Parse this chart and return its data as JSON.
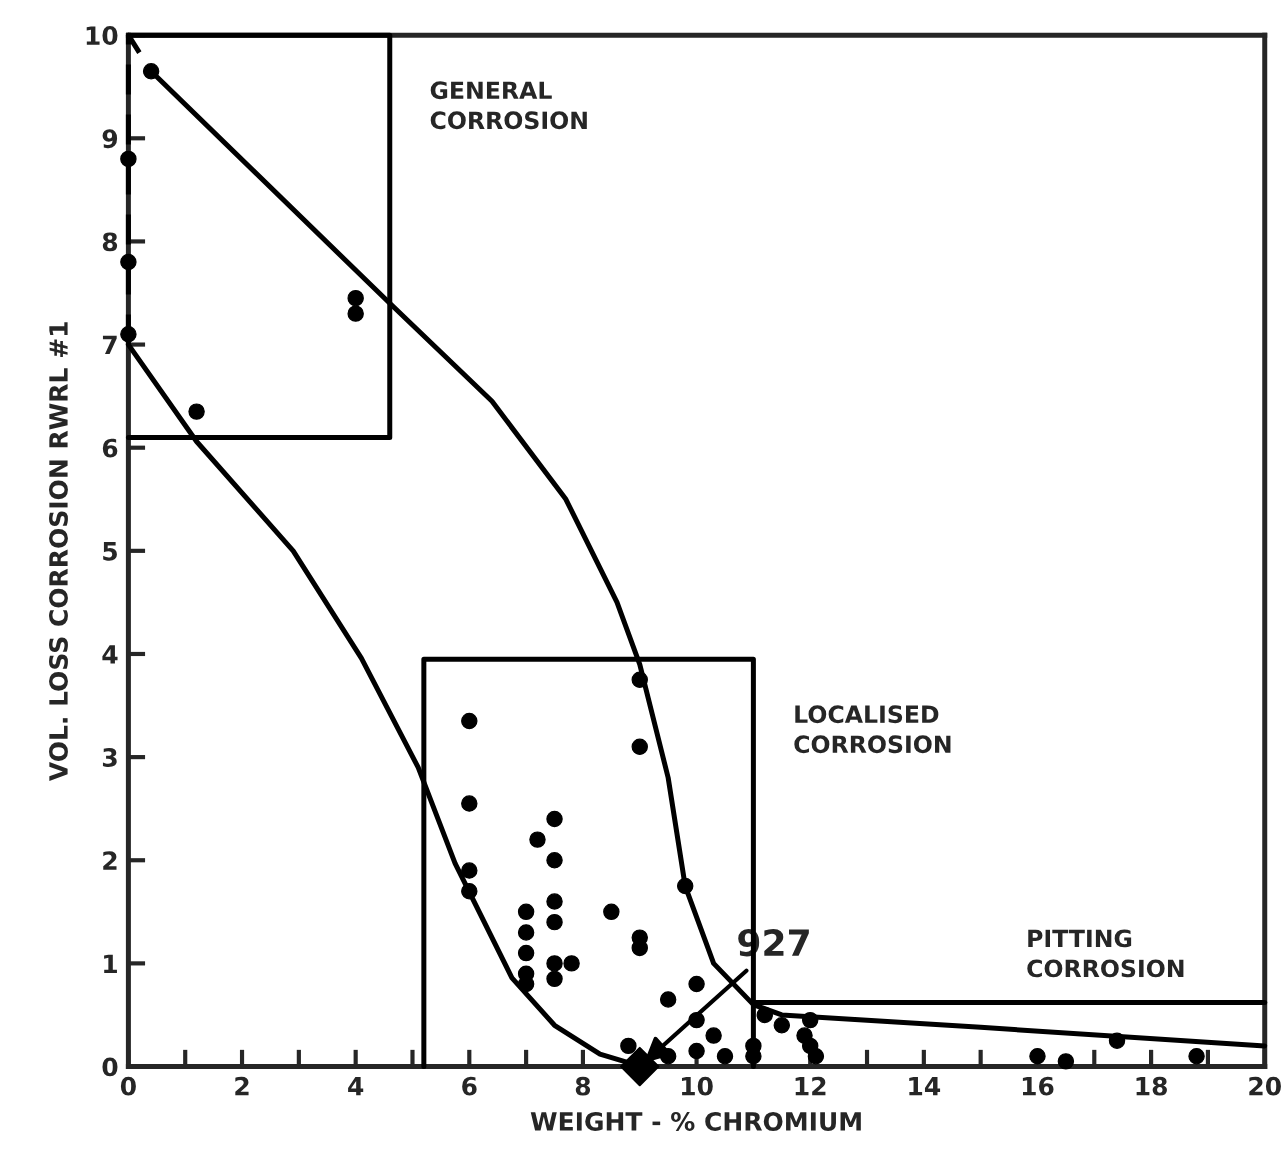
{
  "chart_data": {
    "type": "scatter",
    "xlabel": "WEIGHT - % CHROMIUM",
    "ylabel": "VOL. LOSS CORROSION RWRL #1",
    "xlim": [
      0,
      20
    ],
    "ylim": [
      0,
      10
    ],
    "xticks": [
      0,
      {
        "value": 1,
        "label": null
      },
      2,
      {
        "value": 3,
        "label": null
      },
      4,
      {
        "value": 5,
        "label": null
      },
      6,
      {
        "value": 7,
        "label": null
      },
      8,
      {
        "value": 9,
        "label": null
      },
      10,
      {
        "value": 11,
        "label": null
      },
      12,
      {
        "value": 13,
        "label": null
      },
      14,
      {
        "value": 15,
        "label": null
      },
      16,
      {
        "value": 17,
        "label": null
      },
      18,
      {
        "value": 19,
        "label": null
      },
      20
    ],
    "yticks": [
      0,
      1,
      2,
      3,
      4,
      5,
      6,
      7,
      8,
      9,
      10
    ],
    "grid": false,
    "legend": false,
    "series": [
      {
        "marker": "circle",
        "color": "#000000",
        "x": [
          0,
          0,
          0,
          0.4,
          1.2,
          4,
          4,
          6,
          6,
          6,
          6,
          7,
          7,
          7,
          7,
          7,
          7.2,
          7.5,
          7.5,
          7.5,
          7.5,
          7.5,
          7.5,
          7.8,
          8.5,
          9,
          9,
          9,
          9,
          9.8,
          9.5,
          10,
          10,
          10.3,
          10,
          10.5,
          9.5,
          8.8,
          11,
          11.2,
          11.5,
          11.9,
          12,
          12.1,
          12,
          16,
          16.5,
          17.4,
          18.8,
          11
        ],
        "values": [
          8.8,
          7.8,
          7.1,
          9.65,
          6.35,
          7.45,
          7.3,
          3.35,
          2.55,
          1.9,
          1.7,
          1.5,
          1.3,
          1.1,
          0.9,
          0.8,
          2.2,
          2.4,
          2.0,
          1.6,
          1.4,
          1.0,
          0.85,
          1.0,
          1.5,
          3.75,
          3.1,
          1.25,
          1.15,
          1.75,
          0.65,
          0.8,
          0.45,
          0.3,
          0.15,
          0.1,
          0.1,
          0.2,
          0.2,
          0.5,
          0.4,
          0.3,
          0.45,
          0.1,
          0.2,
          0.1,
          0.05,
          0.25,
          0.1,
          0.1
        ]
      },
      {
        "type": "scatter",
        "marker": "diamond",
        "color": "#000000",
        "x": [
          9
        ],
        "values": [
          0
        ]
      },
      {
        "type": "line",
        "line_style": "solid",
        "color": "#000000",
        "x": [
          0.4,
          4.6,
          6.4,
          7.7,
          8.6,
          9,
          9.5,
          9.8,
          10.3,
          11,
          11.5,
          15,
          20
        ],
        "values": [
          9.65,
          7.4,
          6.45,
          5.5,
          4.5,
          3.9,
          2.8,
          1.75,
          1.0,
          0.6,
          0.5,
          0.38,
          0.2
        ]
      },
      {
        "type": "line",
        "line_style": "solid",
        "color": "#000000",
        "x": [
          0,
          1.2,
          2.9,
          4.1,
          5.1,
          5.75,
          6.75,
          7.5,
          8.3,
          8.9
        ],
        "values": [
          7,
          6.06,
          5.0,
          3.96,
          2.9,
          1.97,
          0.86,
          0.4,
          0.12,
          0.02
        ]
      },
      {
        "type": "line",
        "line_style": "dashed",
        "color": "#000000",
        "x": [
          0,
          0,
          0.4
        ],
        "values": [
          7,
          10,
          9.65
        ]
      },
      {
        "type": "line",
        "line_style": "solid",
        "color": "#000000",
        "x": [
          0,
          4.6,
          4.6,
          0
        ],
        "values": [
          10,
          10,
          6.1,
          6.1
        ]
      },
      {
        "type": "line",
        "line_style": "solid",
        "color": "#000000",
        "x": [
          5.2,
          5.2,
          11,
          11
        ],
        "values": [
          0,
          3.95,
          3.95,
          0
        ]
      },
      {
        "type": "line",
        "line_style": "solid",
        "color": "#000000",
        "x": [
          11,
          20
        ],
        "values": [
          0.62,
          0.62
        ]
      }
    ],
    "annotations": [
      "GENERAL\nCORROSION",
      "LOCALISED\nCORROSION",
      "PITTING\nCORROSION",
      {
        "text": "927",
        "x": 9,
        "y": 0
      }
    ]
  }
}
